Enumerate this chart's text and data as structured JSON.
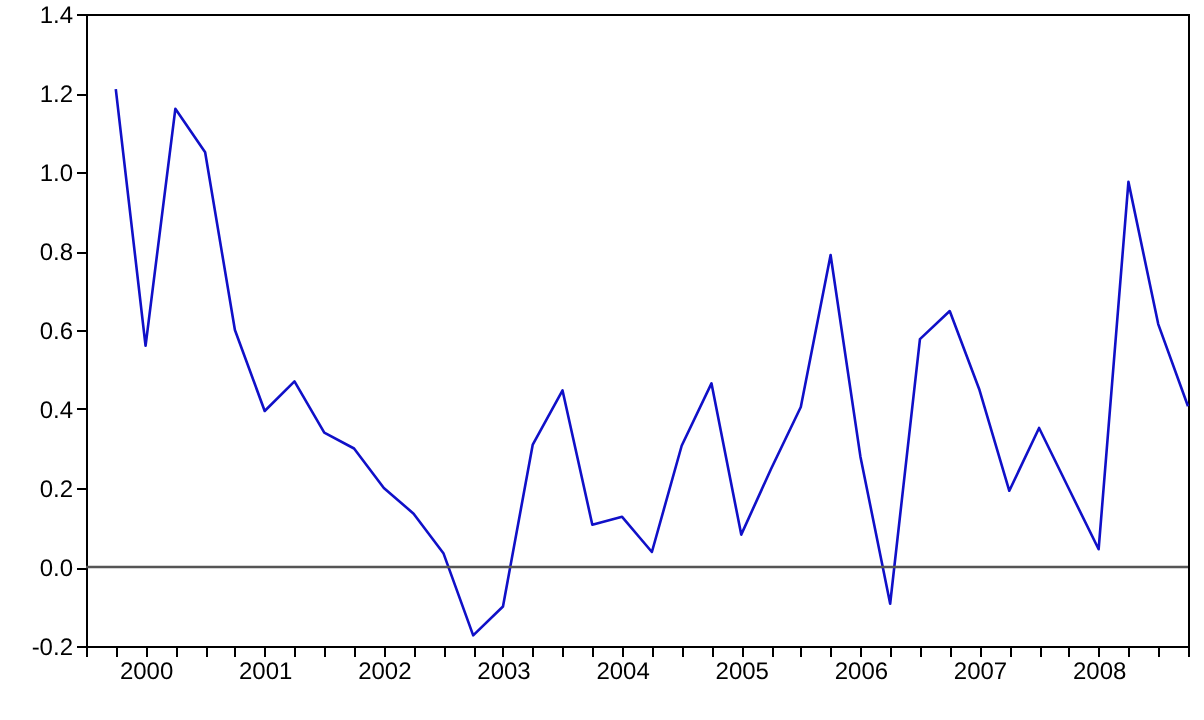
{
  "chart_data": {
    "type": "line",
    "x": [
      1999.75,
      2000,
      2000.25,
      2000.5,
      2000.75,
      2001,
      2001.25,
      2001.5,
      2001.75,
      2002,
      2002.25,
      2002.5,
      2002.75,
      2003,
      2003.25,
      2003.5,
      2003.75,
      2004,
      2004.25,
      2004.5,
      2004.75,
      2005,
      2005.25,
      2005.5,
      2005.75,
      2006,
      2006.25,
      2006.5,
      2006.75,
      2007,
      2007.25,
      2007.5,
      2007.75,
      2008,
      2008.25,
      2008.5,
      2008.75
    ],
    "series": [
      {
        "color": "#1010c8",
        "values": [
          1.21,
          0.56,
          1.16,
          1.05,
          0.6,
          0.395,
          0.47,
          0.34,
          0.3,
          0.2,
          0.135,
          0.035,
          -0.173,
          -0.1,
          0.31,
          0.447,
          0.107,
          0.127,
          0.038,
          0.307,
          0.465,
          0.082,
          0.248,
          0.405,
          0.79,
          0.28,
          -0.093,
          0.577,
          0.648,
          0.448,
          0.193,
          0.352,
          0.198,
          0.045,
          0.975,
          0.615,
          0.407
        ]
      }
    ],
    "xlim": [
      1999.5,
      2008.75
    ],
    "xticks": [
      {
        "value": 1999.5,
        "label": null
      },
      {
        "value": 1999.75,
        "label": null
      },
      2000,
      {
        "value": 2000.25,
        "label": null
      },
      {
        "value": 2000.5,
        "label": null
      },
      {
        "value": 2000.75,
        "label": null
      },
      2001,
      {
        "value": 2001.25,
        "label": null
      },
      {
        "value": 2001.5,
        "label": null
      },
      {
        "value": 2001.75,
        "label": null
      },
      2002,
      {
        "value": 2002.25,
        "label": null
      },
      {
        "value": 2002.5,
        "label": null
      },
      {
        "value": 2002.75,
        "label": null
      },
      2003,
      {
        "value": 2003.25,
        "label": null
      },
      {
        "value": 2003.5,
        "label": null
      },
      {
        "value": 2003.75,
        "label": null
      },
      2004,
      {
        "value": 2004.25,
        "label": null
      },
      {
        "value": 2004.5,
        "label": null
      },
      {
        "value": 2004.75,
        "label": null
      },
      2005,
      {
        "value": 2005.25,
        "label": null
      },
      {
        "value": 2005.5,
        "label": null
      },
      {
        "value": 2005.75,
        "label": null
      },
      2006,
      {
        "value": 2006.25,
        "label": null
      },
      {
        "value": 2006.5,
        "label": null
      },
      {
        "value": 2006.75,
        "label": null
      },
      2007,
      {
        "value": 2007.25,
        "label": null
      },
      {
        "value": 2007.5,
        "label": null
      },
      {
        "value": 2007.75,
        "label": null
      },
      2008,
      {
        "value": 2008.25,
        "label": null
      },
      {
        "value": 2008.5,
        "label": null
      },
      {
        "value": 2008.75,
        "label": null
      }
    ],
    "ylim": [
      -0.2,
      1.4
    ],
    "yticks": [
      {
        "value": -0.2,
        "label": "-0.2"
      },
      {
        "value": 0,
        "label": "0.0"
      },
      {
        "value": 0.2,
        "label": "0.2"
      },
      {
        "value": 0.4,
        "label": "0.4"
      },
      {
        "value": 0.6,
        "label": "0.6"
      },
      {
        "value": 0.8,
        "label": "0.8"
      },
      {
        "value": 1,
        "label": "1.0"
      },
      {
        "value": 1.2,
        "label": "1.2"
      },
      {
        "value": 1.4,
        "label": "1.4"
      }
    ],
    "ref_lines": [
      {
        "axis": "y",
        "value": 0,
        "color": "#555555"
      }
    ],
    "grid": false,
    "marker": "none",
    "line_style": "solid"
  }
}
